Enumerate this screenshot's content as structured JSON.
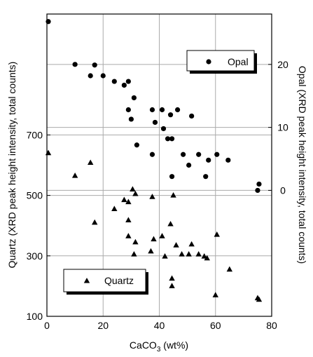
{
  "chart_data": {
    "type": "scatter",
    "xlabel": "CaCO",
    "xlabel_subscript": "3",
    "xlabel_suffix": " (wt%)",
    "ylabel": "Quartz (XRD peak height intensity, total counts)",
    "ylabel_right": "Opal (XRD peak height intensity, total counts)",
    "xlim": [
      0,
      80
    ],
    "ylim": [
      100,
      1100
    ],
    "ylim_right": [
      -20,
      28
    ],
    "x_ticks": [
      0,
      20,
      40,
      60,
      80
    ],
    "x_tick_labels": [
      "0",
      "20",
      "40",
      "60",
      "80"
    ],
    "y_ticks": [
      100,
      300,
      500,
      700
    ],
    "y_tick_labels": [
      "100",
      "300",
      "500",
      "700"
    ],
    "y_ticks_right": [
      0,
      10,
      20
    ],
    "y_tick_labels_right": [
      "0",
      "10",
      "20"
    ],
    "grid": true,
    "legend": [
      {
        "name": "Opal",
        "marker": "circle",
        "placement": "top-right"
      },
      {
        "name": "Quartz",
        "marker": "triangle",
        "placement": "bottom-left"
      }
    ],
    "series": [
      {
        "name": "Opal",
        "marker": "circle",
        "axis": "right",
        "points": [
          [
            0.5,
            26.8
          ],
          [
            10,
            20.0
          ],
          [
            17,
            19.9
          ],
          [
            15.5,
            18.2
          ],
          [
            20,
            18.2
          ],
          [
            24,
            17.3
          ],
          [
            29,
            17.3
          ],
          [
            27.5,
            16.7
          ],
          [
            31,
            14.7
          ],
          [
            29,
            12.8
          ],
          [
            30,
            11.3
          ],
          [
            37.5,
            12.8
          ],
          [
            41,
            12.8
          ],
          [
            46.5,
            12.8
          ],
          [
            38.5,
            10.8
          ],
          [
            44,
            12.0
          ],
          [
            51.5,
            11.8
          ],
          [
            41.5,
            9.8
          ],
          [
            43,
            8.2
          ],
          [
            44.5,
            8.2
          ],
          [
            32,
            7.2
          ],
          [
            37.5,
            5.7
          ],
          [
            48.5,
            5.7
          ],
          [
            54,
            5.7
          ],
          [
            60.5,
            5.7
          ],
          [
            57.5,
            4.8
          ],
          [
            64.5,
            4.8
          ],
          [
            50.5,
            4.0
          ],
          [
            44.5,
            2.2
          ],
          [
            56.5,
            2.2
          ],
          [
            75.5,
            1.0
          ],
          [
            75,
            0.0
          ]
        ]
      },
      {
        "name": "Quartz",
        "marker": "triangle",
        "axis": "left",
        "points": [
          [
            0.5,
            640
          ],
          [
            10,
            565
          ],
          [
            15.5,
            608
          ],
          [
            17,
            410
          ],
          [
            24,
            455
          ],
          [
            27.5,
            485
          ],
          [
            29,
            478
          ],
          [
            29,
            418
          ],
          [
            30.5,
            520
          ],
          [
            31.5,
            505
          ],
          [
            37.5,
            495
          ],
          [
            44,
            405
          ],
          [
            45,
            500
          ],
          [
            29,
            365
          ],
          [
            31.5,
            345
          ],
          [
            31,
            305
          ],
          [
            37,
            315
          ],
          [
            38,
            355
          ],
          [
            41,
            365
          ],
          [
            42,
            298
          ],
          [
            46,
            335
          ],
          [
            48,
            305
          ],
          [
            50.5,
            305
          ],
          [
            51.5,
            338
          ],
          [
            54,
            305
          ],
          [
            56,
            298
          ],
          [
            57,
            292
          ],
          [
            60.5,
            370
          ],
          [
            65,
            255
          ],
          [
            44.5,
            225
          ],
          [
            44.5,
            200
          ],
          [
            60,
            170
          ],
          [
            75,
            160
          ],
          [
            75.5,
            155
          ]
        ]
      }
    ]
  }
}
